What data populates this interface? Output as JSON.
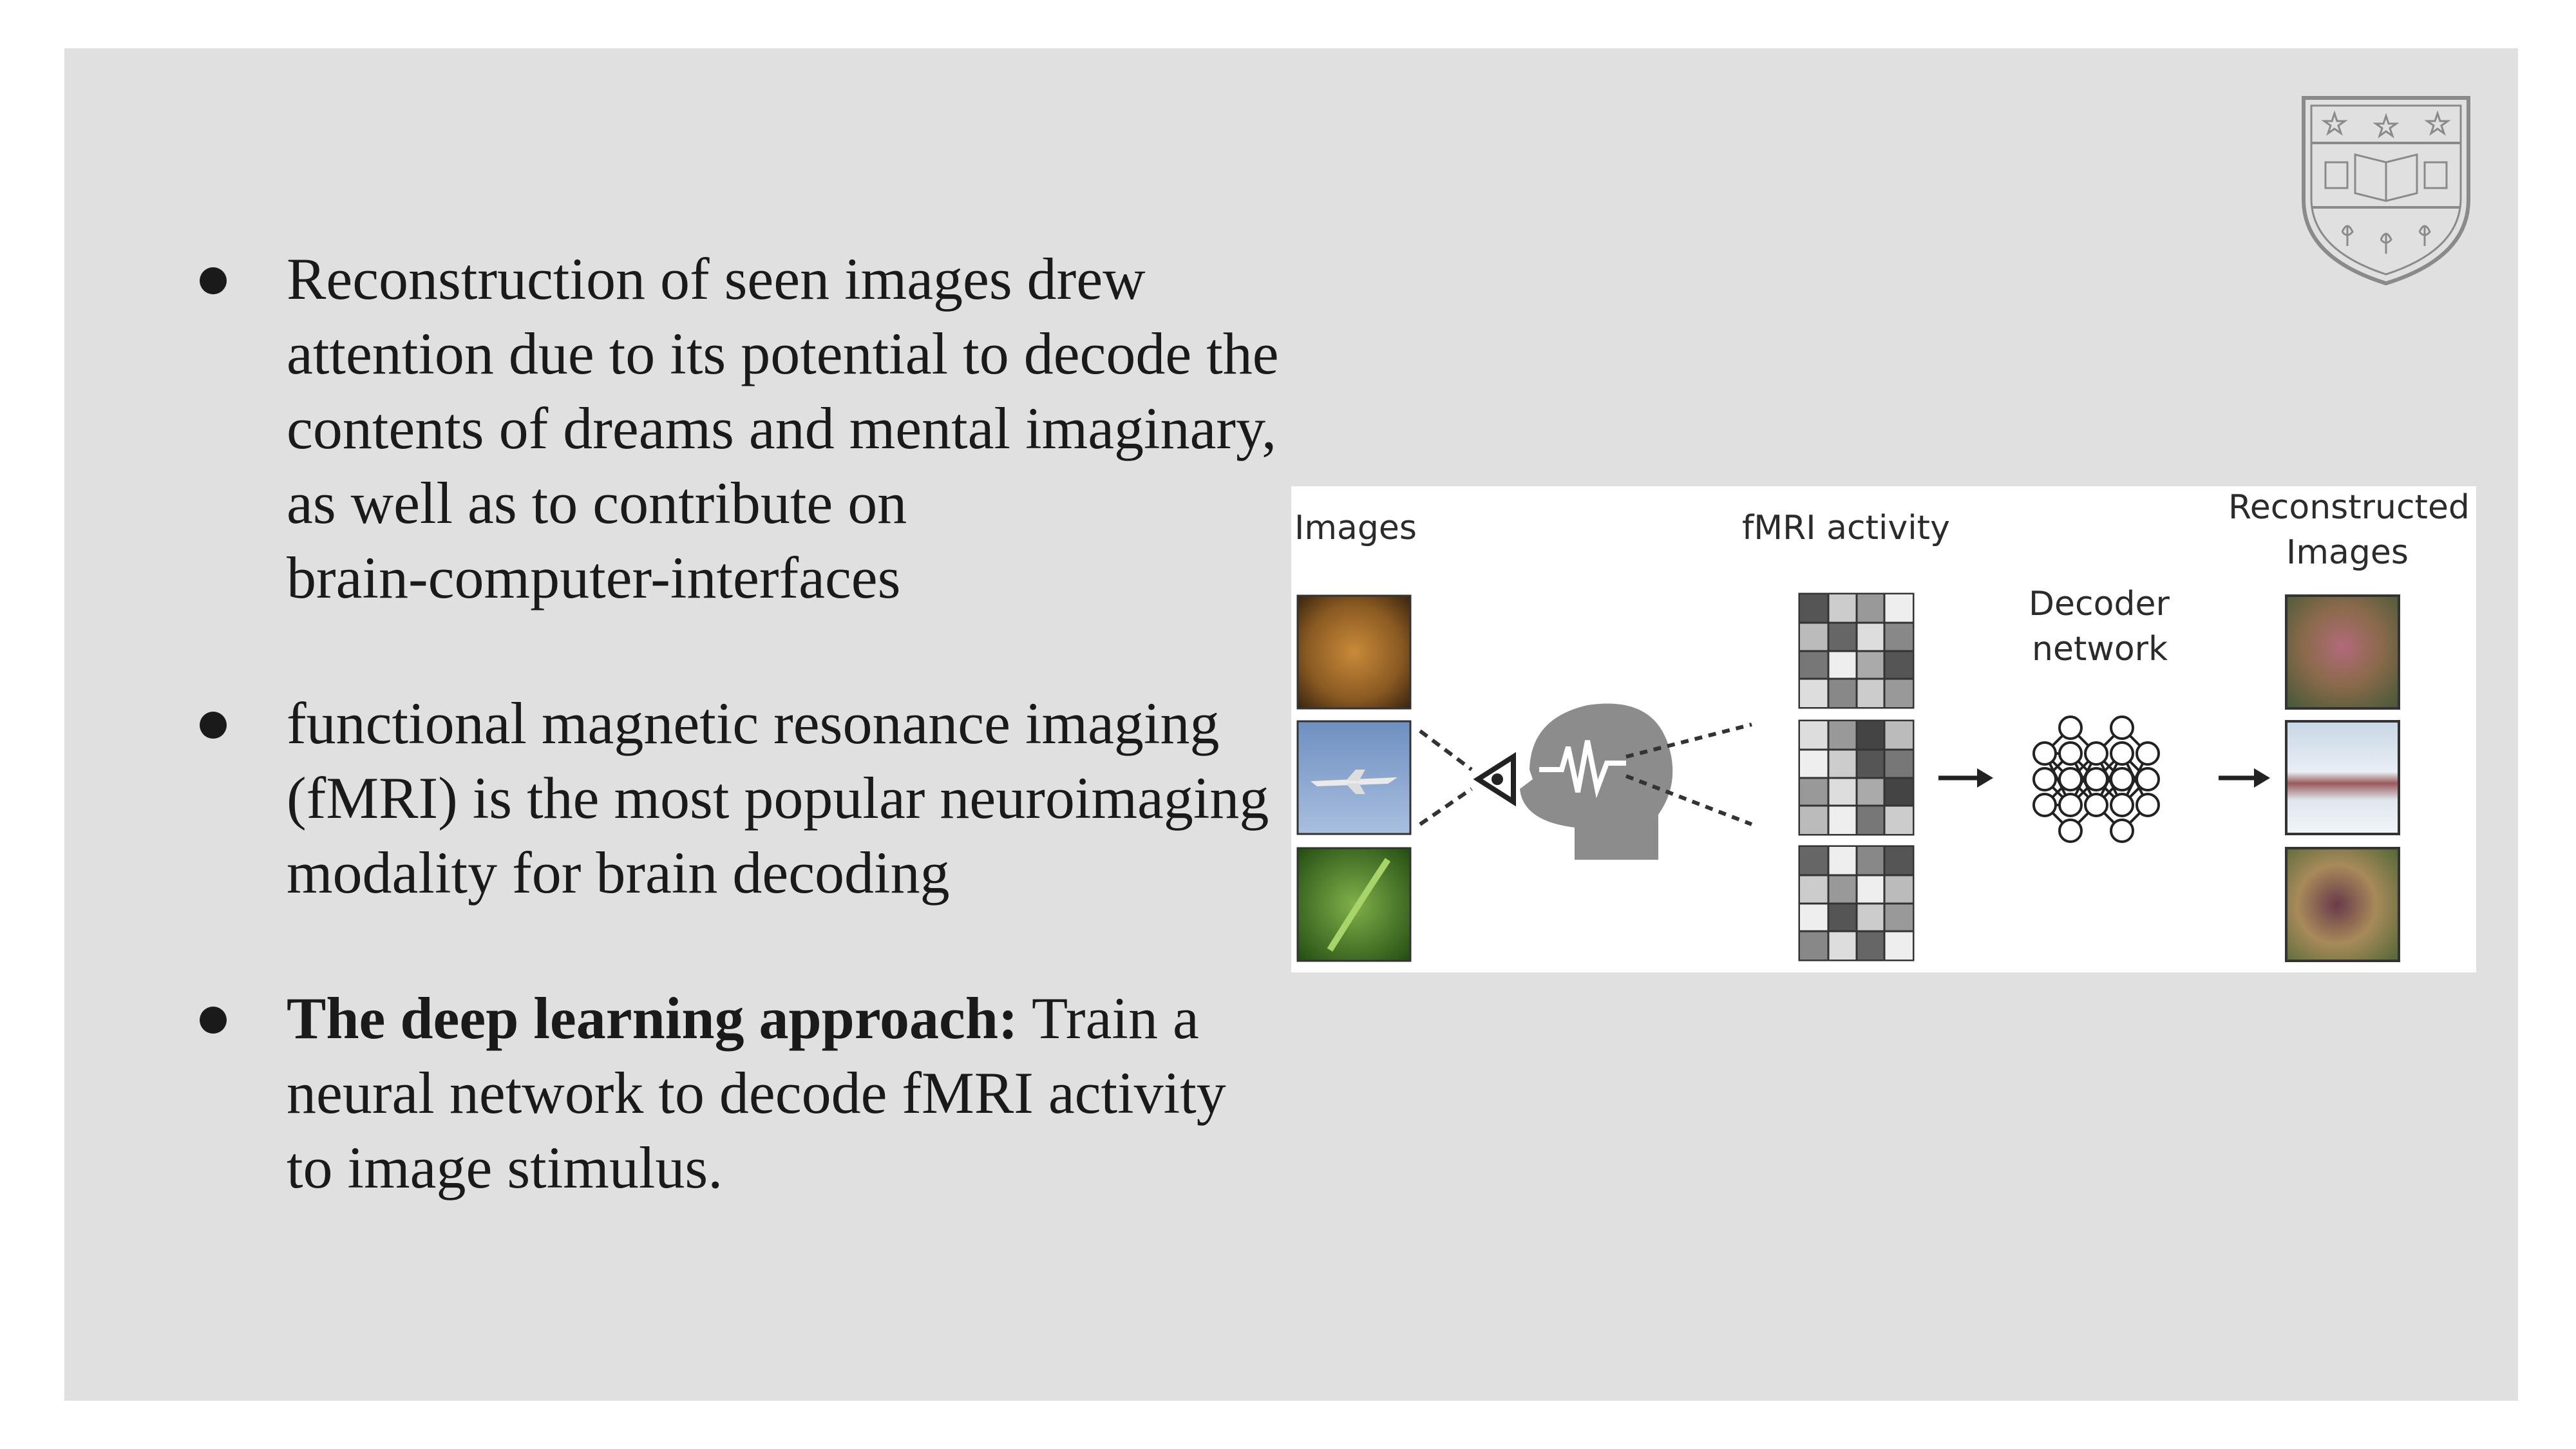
{
  "bullets": [
    {
      "lines": [
        "Reconstruction of seen images drew",
        "attention due to its potential to decode the",
        "contents of dreams and mental imaginary,",
        "as well as to contribute on",
        "brain-computer-interfaces"
      ]
    },
    {
      "lines": [
        "functional magnetic resonance imaging",
        "(fMRI) is the most popular neuroimaging",
        "modality for brain decoding"
      ]
    },
    {
      "bold_lead": "The deep learning approach:",
      "lines": [
        " Train a",
        "neural network to decode fMRI activity",
        "to image stimulus."
      ]
    }
  ],
  "figure": {
    "label_images": "Images",
    "label_fmri": "fMRI activity",
    "label_decoder_1": "Decoder",
    "label_decoder_2": "network",
    "label_recon_1": "Reconstructed",
    "label_recon_2": "Images"
  },
  "colors": {
    "slide_bg": "#e0e0e0",
    "text": "#1a1a1a",
    "seal_stroke": "#8a8a8a"
  },
  "icons": [
    "bullet-dot-icon",
    "university-seal-icon",
    "eye-icon",
    "head-icon",
    "arrow-right-icon",
    "neural-network-icon"
  ]
}
